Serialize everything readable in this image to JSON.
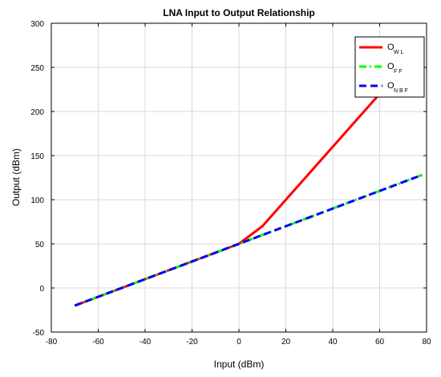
{
  "chart_data": {
    "type": "line",
    "title": "LNA Input to Output Relationship",
    "xlabel": "Input (dBm)",
    "ylabel": "Output (dBm)",
    "xlim": [
      -80,
      80
    ],
    "ylim": [
      -50,
      300
    ],
    "xticks": [
      -80,
      -60,
      -40,
      -20,
      0,
      20,
      40,
      60,
      80
    ],
    "yticks": [
      -50,
      0,
      50,
      100,
      150,
      200,
      250,
      300
    ],
    "grid": true,
    "legend_position": "top-right",
    "series": [
      {
        "name": "O",
        "name_subscript": "W L",
        "color": "#ff0000",
        "style": "solid",
        "x": [
          -70,
          -60,
          -50,
          -40,
          -30,
          -20,
          -10,
          0,
          10,
          20,
          30,
          40,
          50,
          60,
          70,
          78
        ],
        "y": [
          -20,
          -10,
          0,
          10,
          20,
          30,
          40,
          50,
          70,
          100,
          130,
          160,
          190,
          220,
          250,
          274
        ]
      },
      {
        "name": "O",
        "name_subscript": "F F",
        "color": "#00ff00",
        "style": "dashdot",
        "x": [
          -70,
          78
        ],
        "y": [
          -20,
          128
        ]
      },
      {
        "name": "O",
        "name_subscript": "N B F",
        "color": "#0000ff",
        "style": "dashed",
        "x": [
          -70,
          78
        ],
        "y": [
          -20,
          128
        ]
      }
    ]
  }
}
